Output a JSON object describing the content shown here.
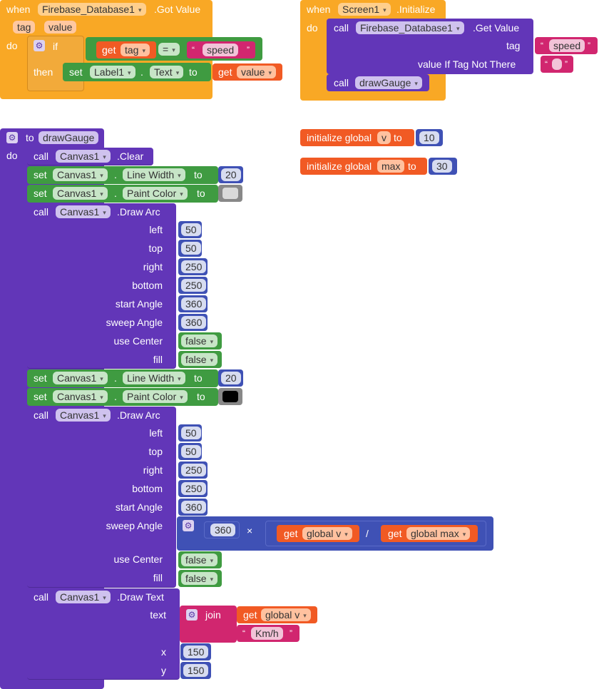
{
  "event_got_value": {
    "when": "when",
    "component": "Firebase_Database1",
    "event": ".Got Value",
    "params": [
      "tag",
      "value"
    ],
    "do": "do",
    "if": "if",
    "then": "then",
    "get1": "get",
    "get1_var": "tag",
    "op": "=",
    "str_speed": "speed",
    "set": "set",
    "label": "Label1",
    "dot": ".",
    "prop": "Text",
    "to": "to",
    "get2": "get",
    "get2_var": "value"
  },
  "event_initialize": {
    "when": "when",
    "component": "Screen1",
    "event": ".Initialize",
    "do": "do",
    "call": "call",
    "db": "Firebase_Database1",
    "method": ".Get Value",
    "tag_label": "tag",
    "tag_value": "speed",
    "value_if_label": "value If Tag Not There",
    "value_if_value": "",
    "call2": "call",
    "proc": "drawGauge"
  },
  "globals": [
    {
      "label": "initialize global",
      "name": "v",
      "to": "to",
      "value": "10"
    },
    {
      "label": "initialize global",
      "name": "max",
      "to": "to",
      "value": "30"
    }
  ],
  "procedure": {
    "to": "to",
    "name": "drawGauge",
    "do": "do",
    "clear": {
      "call": "call",
      "component": "Canvas1",
      "method": ".Clear"
    },
    "set1": {
      "set": "set",
      "component": "Canvas1",
      "dot": ".",
      "prop": "Line Width",
      "to": "to",
      "value": "20"
    },
    "set2": {
      "set": "set",
      "component": "Canvas1",
      "dot": ".",
      "prop": "Paint Color",
      "to": "to",
      "color": "#d9d9d9"
    },
    "arc1": {
      "call": "call",
      "component": "Canvas1",
      "method": ".Draw Arc",
      "args": [
        {
          "label": "left",
          "value": "50"
        },
        {
          "label": "top",
          "value": "50"
        },
        {
          "label": "right",
          "value": "250"
        },
        {
          "label": "bottom",
          "value": "250"
        },
        {
          "label": "start Angle",
          "value": "360"
        },
        {
          "label": "sweep Angle",
          "value": "360"
        },
        {
          "label": "use Center",
          "value": "false"
        },
        {
          "label": "fill",
          "value": "false"
        }
      ]
    },
    "set3": {
      "set": "set",
      "component": "Canvas1",
      "dot": ".",
      "prop": "Line Width",
      "to": "to",
      "value": "20"
    },
    "set4": {
      "set": "set",
      "component": "Canvas1",
      "dot": ".",
      "prop": "Paint Color",
      "to": "to",
      "color": "#000000"
    },
    "arc2": {
      "call": "call",
      "component": "Canvas1",
      "method": ".Draw Arc",
      "args": [
        {
          "label": "left",
          "value": "50"
        },
        {
          "label": "top",
          "value": "50"
        },
        {
          "label": "right",
          "value": "250"
        },
        {
          "label": "bottom",
          "value": "250"
        },
        {
          "label": "start Angle",
          "value": "360"
        }
      ],
      "sweep_label": "sweep Angle",
      "mul_value": "360",
      "times": "×",
      "divide": "/",
      "get_a": "get",
      "get_a_var": "global v",
      "get_b": "get",
      "get_b_var": "global max",
      "use_center_label": "use Center",
      "use_center_value": "false",
      "fill_label": "fill",
      "fill_value": "false"
    },
    "text": {
      "call": "call",
      "component": "Canvas1",
      "method": ".Draw Text",
      "text_label": "text",
      "join": "join",
      "get": "get",
      "get_var": "global v",
      "str": "Km/h",
      "x_label": "x",
      "x_value": "150",
      "y_label": "y",
      "y_value": "150"
    }
  },
  "colors": {
    "event": "#f9a825",
    "procedure": "#6236b8",
    "control": "#c88330",
    "setter": "#3f9b41",
    "getter": "#f15a24",
    "text": "#d1266f",
    "math": "#3f51b5",
    "logic": "#3f9b41"
  }
}
